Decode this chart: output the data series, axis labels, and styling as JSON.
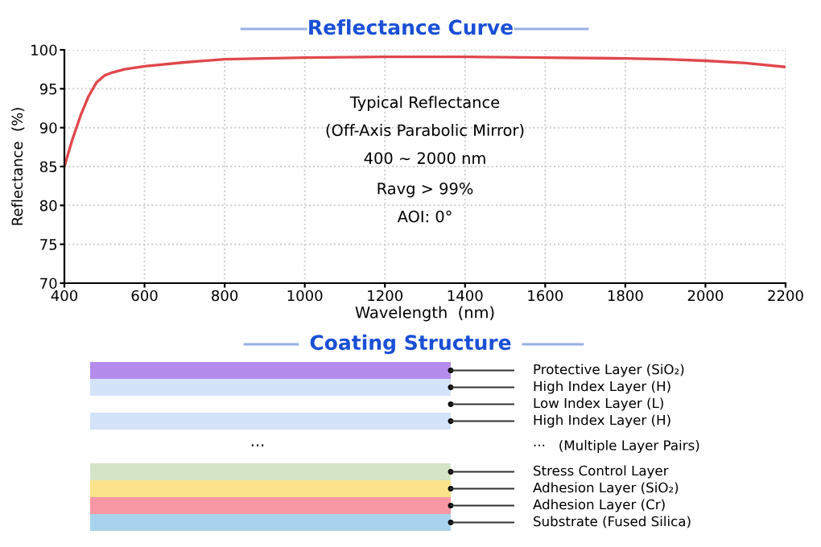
{
  "chart_data": [
    {
      "type": "line",
      "title": "Reflectance Curve",
      "xlabel": "Wavelength  (nm)",
      "ylabel": "Reflectance  (%)",
      "x": [
        400,
        420,
        440,
        460,
        480,
        500,
        520,
        550,
        600,
        700,
        800,
        1000,
        1200,
        1400,
        1600,
        1800,
        1900,
        2000,
        2100,
        2200
      ],
      "series": [
        {
          "color": "#e0474c",
          "values": [
            85,
            88.5,
            91.5,
            94,
            95.8,
            96.7,
            97.1,
            97.5,
            97.9,
            98.4,
            98.8,
            99.0,
            99.1,
            99.1,
            99.0,
            98.9,
            98.8,
            98.6,
            98.3,
            97.8
          ]
        }
      ],
      "xlim": [
        400,
        2200
      ],
      "ylim": [
        70,
        100
      ],
      "xticks": [
        400,
        600,
        800,
        1000,
        1200,
        1400,
        1600,
        1800,
        2000,
        2200
      ],
      "yticks": [
        70,
        75,
        80,
        85,
        90,
        95,
        100
      ],
      "grid": true,
      "marker": "none",
      "line_style": "solid",
      "annotations": [
        "Typical Reflectance",
        "(Off-Axis Parabolic Mirror)",
        "400 ~ 2000 nm",
        "Ravg > 99%",
        "AOI: 0°"
      ]
    },
    {
      "type": "other",
      "title": "Coating Structure",
      "categories": [
        "Protective Layer (SiO₂)",
        "High Index Layer (H)",
        "Low Index Layer (L)",
        "High Index Layer (H)",
        "···   (Multiple Layer Pairs)",
        "Stress Control Layer",
        "Adhesion Layer (SiO₂)",
        "Adhesion Layer (Cr)",
        "Substrate (Fused Silica)"
      ],
      "colors": [
        "#b58cec",
        "#d4e3fa",
        "#ffffff",
        "#d4e3fa",
        null,
        "#d5e3c7",
        "#fbe38c",
        "#f797a4",
        "#a9d2ec"
      ],
      "annotations": [
        "···"
      ]
    }
  ]
}
